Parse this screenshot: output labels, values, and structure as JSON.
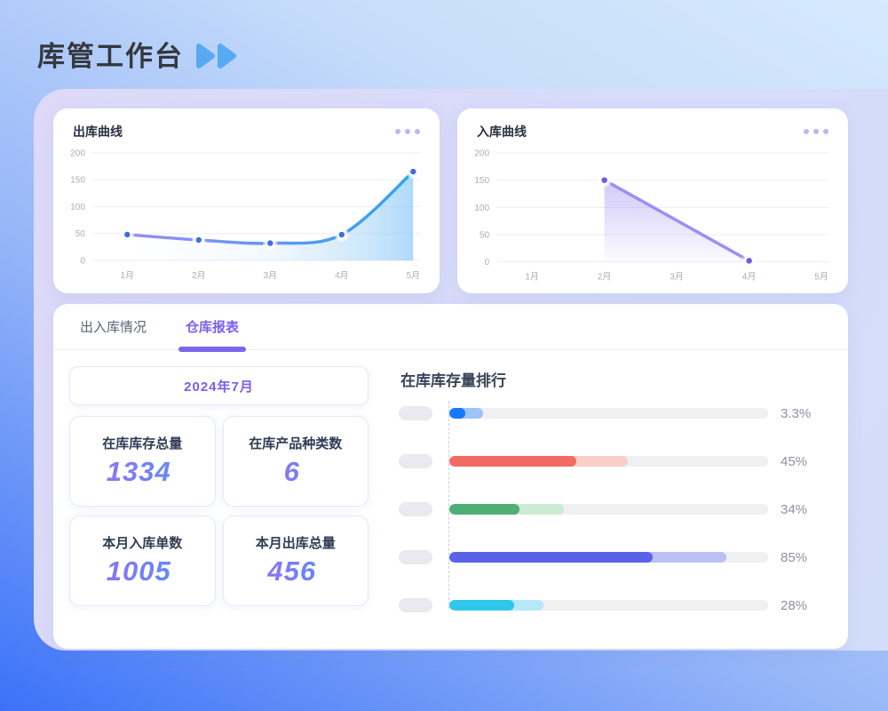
{
  "header": {
    "title": "库管工作台"
  },
  "chart_data": [
    {
      "id": "outbound",
      "type": "line",
      "title": "出库曲线",
      "categories": [
        "1月",
        "2月",
        "3月",
        "4月",
        "5月"
      ],
      "values": [
        48,
        38,
        32,
        48,
        165
      ],
      "ylim": [
        0,
        200
      ],
      "y_ticks": [
        0,
        50,
        100,
        150,
        200
      ],
      "smooth": true,
      "area": "blue",
      "line_gradient": [
        "#988CF2",
        "#2BA4F0"
      ],
      "point_color": "#3D6FE3",
      "grid": "horizontal"
    },
    {
      "id": "inbound",
      "type": "line",
      "title": "入库曲线",
      "categories": [
        "1月",
        "2月",
        "3月",
        "4月",
        "5月"
      ],
      "points": [
        {
          "category": "2月",
          "index": 1,
          "value": 150
        },
        {
          "category": "4月",
          "index": 3,
          "value": 2
        }
      ],
      "ylim": [
        0,
        200
      ],
      "y_ticks": [
        0,
        50,
        100,
        150,
        200
      ],
      "smooth": false,
      "area": "purple",
      "line_color": "#9C8FF2",
      "point_color": "#7257E8",
      "grid": "horizontal"
    },
    {
      "id": "stock-ranking",
      "type": "bar",
      "title": "在库库存量排行",
      "bars": [
        {
          "label_pct": "3.3%",
          "solid_pct": 5.1,
          "light_pct": 10.5,
          "solid_color": "#1677FF",
          "light_color": "#9CC4FB"
        },
        {
          "label_pct": "45%",
          "solid_pct": 39.7,
          "light_pct": 56,
          "solid_color": "#F26A64",
          "light_color": "#F9CDC9"
        },
        {
          "label_pct": "34%",
          "solid_pct": 21.9,
          "light_pct": 36,
          "solid_color": "#4FAE74",
          "light_color": "#CDEBD4"
        },
        {
          "label_pct": "85%",
          "solid_pct": 63.8,
          "light_pct": 87,
          "solid_color": "#5A62E9",
          "light_color": "#BCC0F4"
        },
        {
          "label_pct": "28%",
          "solid_pct": 20.3,
          "light_pct": 29.5,
          "solid_color": "#2FC8EA",
          "light_color": "#B5E9F8"
        }
      ]
    }
  ],
  "tabs": [
    {
      "label": "出入库情况",
      "active": false
    },
    {
      "label": "仓库报表",
      "active": true
    }
  ],
  "report": {
    "month": "2024年7月",
    "stats": [
      {
        "label": "在库库存总量",
        "value": "1334"
      },
      {
        "label": "在库产品种类数",
        "value": "6"
      },
      {
        "label": "本月入库单数",
        "value": "1005"
      },
      {
        "label": "本月出库总量",
        "value": "456"
      }
    ]
  },
  "icons": {
    "title_arrows": "double-play-arrows",
    "card_menu": "more-dots-menu"
  },
  "colors": {
    "accent_purple": "#7B68EE",
    "accent_blue": "#57A9F1",
    "stat_gradient": [
      "#8D74F6",
      "#5F8BF8"
    ],
    "panel_lavender": "#D9DBF9"
  }
}
